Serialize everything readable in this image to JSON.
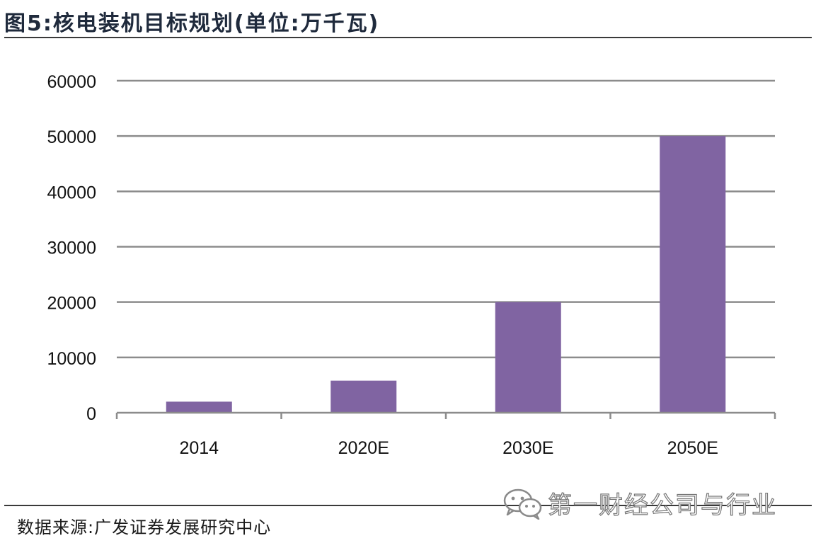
{
  "figure": {
    "title": "图5:核电装机目标规划(单位:万千瓦)"
  },
  "chart_data": {
    "type": "bar",
    "title": "图5:核电装机目标规划(单位:万千瓦)",
    "xlabel": "",
    "ylabel": "",
    "categories": [
      "2014",
      "2020E",
      "2030E",
      "2050E"
    ],
    "values": [
      2000,
      5800,
      20000,
      50000
    ],
    "ylim": [
      0,
      60000
    ],
    "yticks": [
      "0",
      "10000",
      "20000",
      "30000",
      "40000",
      "50000",
      "60000"
    ],
    "ytick_values": [
      0,
      10000,
      20000,
      30000,
      40000,
      50000,
      60000
    ],
    "grid": true,
    "legend": "none",
    "bar_color": "#8064a2",
    "grid_color": "#8c8c8c"
  },
  "footer": {
    "source": "数据来源:广发证券发展研究中心",
    "watermark": "第一财经公司与行业",
    "watermark_icon": "wechat-icon"
  },
  "colors": {
    "bar": "#8064a2",
    "grid": "#8c8c8c",
    "rule": "#3a3a3a"
  }
}
